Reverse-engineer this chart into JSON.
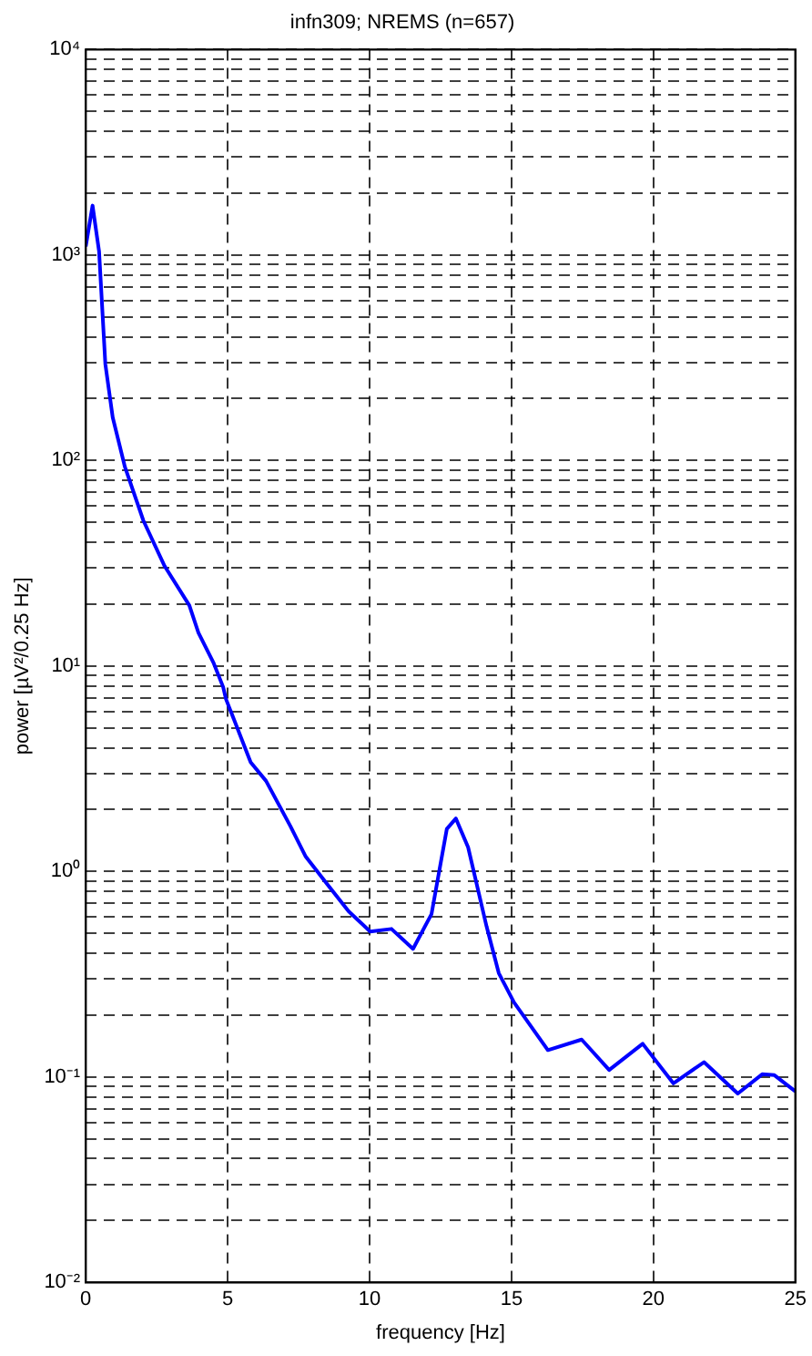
{
  "chart_data": {
    "type": "line",
    "title": "infn309; NREMS (n=657)",
    "xlabel": "frequency [Hz]",
    "ylabel": "power [µV²/0.25 Hz]",
    "log": "y",
    "grid": true,
    "line_style": "dashed",
    "marker": "none",
    "x": [
      0,
      0.24,
      0.47,
      0.69,
      0.95,
      1.38,
      2.03,
      2.78,
      3.65,
      3.97,
      4.51,
      4.84,
      4.94,
      5.81,
      6.35,
      7.21,
      7.75,
      8.5,
      9.26,
      10.02,
      10.77,
      11.53,
      12.18,
      12.72,
      13.04,
      13.47,
      14.12,
      14.55,
      15.09,
      16.28,
      17.47,
      18.44,
      19.62,
      20.7,
      21.78,
      22.97,
      23.83,
      24.26,
      25
    ],
    "series": [
      {
        "color": "#0000ff",
        "line_style": "solid",
        "values": [
          1100,
          1740,
          1040,
          295,
          162,
          93,
          51,
          30.6,
          19.7,
          14.5,
          10.3,
          7.9,
          6.9,
          3.4,
          2.76,
          1.66,
          1.18,
          0.87,
          0.64,
          0.51,
          0.525,
          0.42,
          0.62,
          1.61,
          1.81,
          1.31,
          0.54,
          0.32,
          0.23,
          0.135,
          0.152,
          0.108,
          0.145,
          0.093,
          0.118,
          0.083,
          0.103,
          0.102,
          0.085
        ]
      }
    ],
    "xlim": [
      0,
      25
    ],
    "xticks": [
      0,
      5,
      10,
      15,
      20,
      25
    ],
    "ylim": [
      0.01,
      10000
    ],
    "yticks": [
      {
        "value": 0.01,
        "label": "10⁻²"
      },
      {
        "value": 0.02,
        "label": null
      },
      {
        "value": 0.03,
        "label": null
      },
      {
        "value": 0.04,
        "label": null
      },
      {
        "value": 0.05,
        "label": null
      },
      {
        "value": 0.06,
        "label": null
      },
      {
        "value": 0.07,
        "label": null
      },
      {
        "value": 0.08,
        "label": null
      },
      {
        "value": 0.09,
        "label": null
      },
      {
        "value": 0.1,
        "label": "10⁻¹"
      },
      {
        "value": 0.2,
        "label": null
      },
      {
        "value": 0.3,
        "label": null
      },
      {
        "value": 0.4,
        "label": null
      },
      {
        "value": 0.5,
        "label": null
      },
      {
        "value": 0.6,
        "label": null
      },
      {
        "value": 0.7,
        "label": null
      },
      {
        "value": 0.8,
        "label": null
      },
      {
        "value": 0.9,
        "label": null
      },
      {
        "value": 1,
        "label": "10⁰"
      },
      {
        "value": 2,
        "label": null
      },
      {
        "value": 3,
        "label": null
      },
      {
        "value": 4,
        "label": null
      },
      {
        "value": 5,
        "label": null
      },
      {
        "value": 6,
        "label": null
      },
      {
        "value": 7,
        "label": null
      },
      {
        "value": 8,
        "label": null
      },
      {
        "value": 9,
        "label": null
      },
      {
        "value": 10,
        "label": "10¹"
      },
      {
        "value": 20,
        "label": null
      },
      {
        "value": 30,
        "label": null
      },
      {
        "value": 40,
        "label": null
      },
      {
        "value": 50,
        "label": null
      },
      {
        "value": 60,
        "label": null
      },
      {
        "value": 70,
        "label": null
      },
      {
        "value": 80,
        "label": null
      },
      {
        "value": 90,
        "label": null
      },
      {
        "value": 100,
        "label": "10²"
      },
      {
        "value": 200,
        "label": null
      },
      {
        "value": 300,
        "label": null
      },
      {
        "value": 400,
        "label": null
      },
      {
        "value": 500,
        "label": null
      },
      {
        "value": 600,
        "label": null
      },
      {
        "value": 700,
        "label": null
      },
      {
        "value": 800,
        "label": null
      },
      {
        "value": 900,
        "label": null
      },
      {
        "value": 1000,
        "label": "10³"
      },
      {
        "value": 2000,
        "label": null
      },
      {
        "value": 3000,
        "label": null
      },
      {
        "value": 4000,
        "label": null
      },
      {
        "value": 5000,
        "label": null
      },
      {
        "value": 6000,
        "label": null
      },
      {
        "value": 7000,
        "label": null
      },
      {
        "value": 8000,
        "label": null
      },
      {
        "value": 9000,
        "label": null
      },
      {
        "value": 10000,
        "label": "10⁴"
      }
    ]
  }
}
